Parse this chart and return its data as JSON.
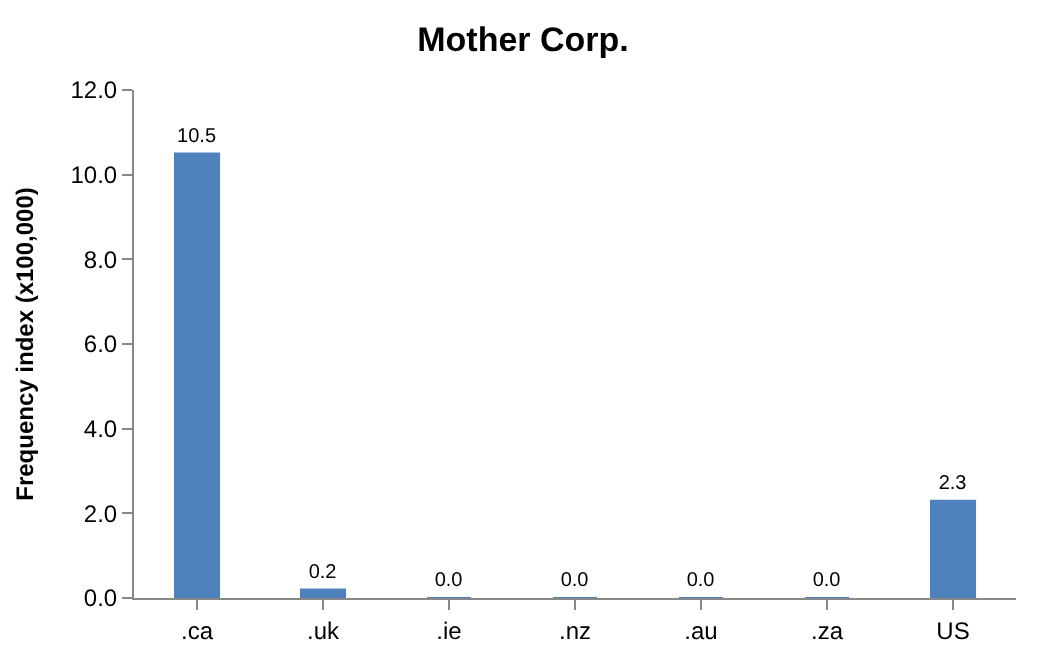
{
  "chart_data": {
    "type": "bar",
    "title": "Mother Corp.",
    "ylabel": "Frequency index (x100,000)",
    "categories": [
      ".ca",
      ".uk",
      ".ie",
      ".nz",
      ".au",
      ".za",
      "US"
    ],
    "values": [
      10.5,
      0.2,
      0,
      0,
      0,
      0,
      2.3
    ],
    "value_labels": [
      "10.5",
      "0.2",
      "0.0",
      "0.0",
      "0.0",
      "0.0",
      "2.3"
    ],
    "color": "#4f81bd",
    "ylim": [
      0,
      12
    ],
    "yticks": [
      {
        "value": 0,
        "label": "0.0"
      },
      {
        "value": 2,
        "label": "2.0"
      },
      {
        "value": 4,
        "label": "4.0"
      },
      {
        "value": 6,
        "label": "6.0"
      },
      {
        "value": 8,
        "label": "8.0"
      },
      {
        "value": 10,
        "label": "10.0"
      },
      {
        "value": 12,
        "label": "12.0"
      }
    ],
    "grid": false,
    "legend": false
  }
}
